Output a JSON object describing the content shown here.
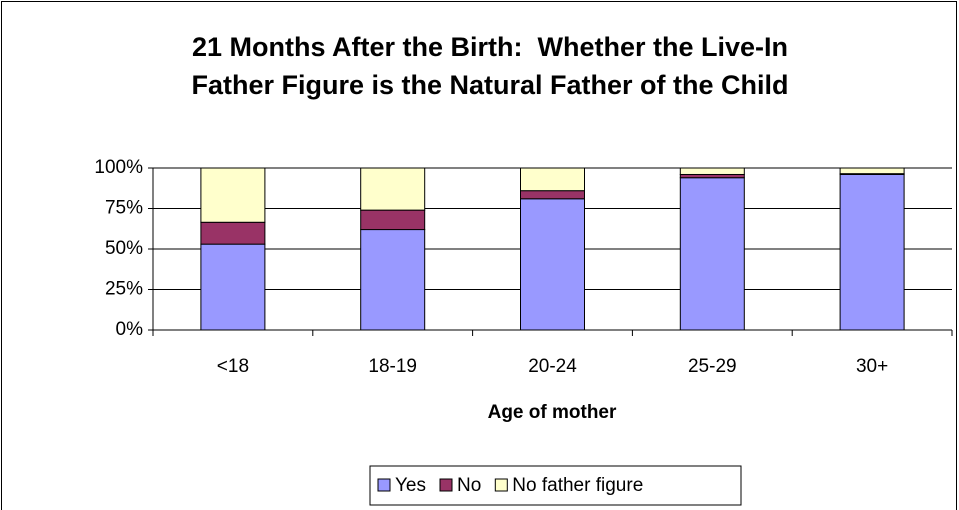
{
  "chart_data": {
    "type": "stacked_bar",
    "title": [
      "21 Months After the Birth:  Whether the Live-In",
      "Father Figure is the Natural Father of the Child"
    ],
    "x_label": "Age of mother",
    "categories": [
      "<18",
      "18-19",
      "20-24",
      "25-29",
      "30+"
    ],
    "series": [
      {
        "name": "Yes",
        "color": "#9999ff",
        "values": [
          53,
          62,
          81,
          94,
          96
        ]
      },
      {
        "name": "No",
        "color": "#993366",
        "values": [
          13.5,
          12,
          5,
          2,
          0.5
        ]
      },
      {
        "name": "No father figure",
        "color": "#ffffcc",
        "values": [
          33.5,
          26,
          14,
          4,
          3.5
        ]
      }
    ],
    "ylim": [
      0,
      100
    ],
    "yticks": [
      {
        "value": 0,
        "label": "0%"
      },
      {
        "value": 25,
        "label": "25%"
      },
      {
        "value": 50,
        "label": "50%"
      },
      {
        "value": 75,
        "label": "75%"
      },
      {
        "value": 100,
        "label": "100%"
      }
    ],
    "grid": true,
    "legend": "bottom"
  }
}
